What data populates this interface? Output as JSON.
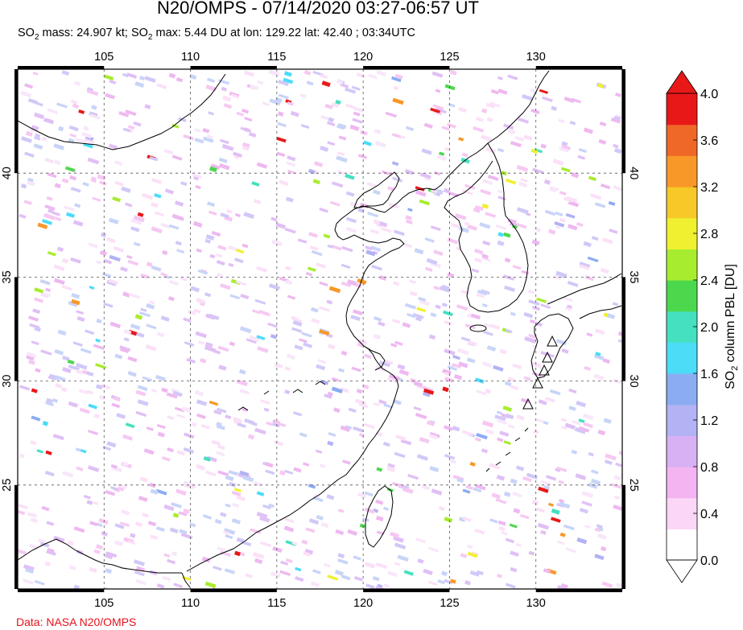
{
  "header": {
    "title": "N20/OMPS - 07/14/2020 03:27-06:57 UT",
    "subtitle_parts": {
      "so": "SO",
      "sub": "2",
      "mass_text": " mass: 24.907 kt; ",
      "max_text": " max: 5.44 DU at lon: 129.22 lat: 42.40 ; 03:34UTC"
    }
  },
  "map": {
    "lon_range": [
      100,
      135
    ],
    "lat_range": [
      20,
      45
    ],
    "lon_ticks": [
      "105",
      "110",
      "115",
      "120",
      "125",
      "130"
    ],
    "lat_ticks": [
      "40",
      "35",
      "30",
      "25"
    ],
    "volcano_markers": 5
  },
  "colorbar": {
    "labels": [
      "4.0",
      "3.6",
      "3.2",
      "2.8",
      "2.4",
      "2.0",
      "1.6",
      "1.2",
      "0.8",
      "0.4",
      "0.0"
    ],
    "title_parts": {
      "so": "SO",
      "sub": "2",
      "rest": " column PBL [DU]"
    },
    "colors": [
      "#ffffff",
      "#fbd6f6",
      "#f4b4f2",
      "#d8b0f4",
      "#b2b2f4",
      "#8cacf2",
      "#4cdcf8",
      "#44e0c0",
      "#4cd84c",
      "#a8ec30",
      "#f0f030",
      "#f8c828",
      "#f89828",
      "#f06828",
      "#e81818"
    ]
  },
  "footer": {
    "credit": "Data: NASA N20/OMPS"
  }
}
